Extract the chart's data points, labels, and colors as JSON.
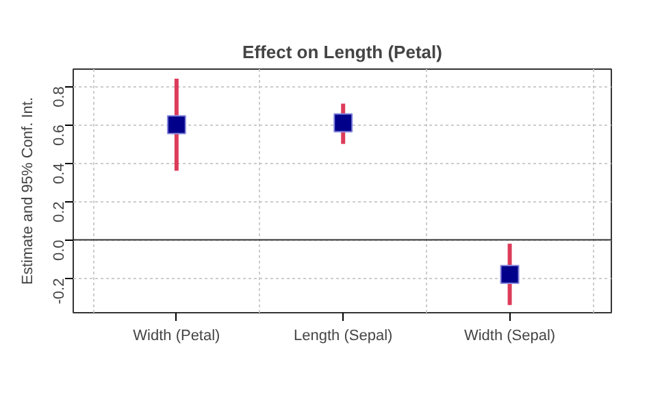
{
  "chart_data": {
    "type": "scatter",
    "title": "Effect on Length (Petal)",
    "ylabel": "Estimate and 95% Conf. Int.",
    "categories": [
      "Width (Petal)",
      "Length (Sepal)",
      "Width (Sepal)"
    ],
    "series": [
      {
        "color": "#00008b",
        "values": [
          0.6,
          0.61,
          -0.18
        ],
        "errors": [
          [
            0.36,
            0.84
          ],
          [
            0.5,
            0.71
          ],
          [
            -0.34,
            -0.02
          ]
        ]
      }
    ],
    "ylim": [
      -0.38,
      0.89
    ],
    "yticks": [
      {
        "value": -0.2,
        "label": "-0.2"
      },
      {
        "value": 0,
        "label": "0.0"
      },
      {
        "value": 0.2,
        "label": "0.2"
      },
      {
        "value": 0.4,
        "label": "0.4"
      },
      {
        "value": 0.6,
        "label": "0.6"
      },
      {
        "value": 0.8,
        "label": "0.8"
      }
    ],
    "ref_lines": [
      {
        "axis": "y",
        "value": 0
      }
    ],
    "grid": true,
    "marker": "square"
  }
}
